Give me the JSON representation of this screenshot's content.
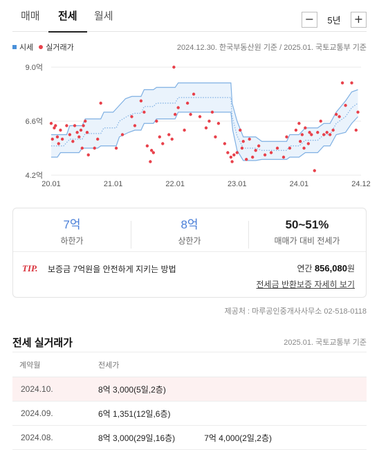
{
  "tabs": [
    {
      "label": "매매",
      "active": false
    },
    {
      "label": "전세",
      "active": true
    },
    {
      "label": "월세",
      "active": false
    }
  ],
  "period": {
    "minus": "−",
    "label": "5년",
    "plus": "+"
  },
  "legend": {
    "market": "시세",
    "actual": "실거래가"
  },
  "chart_source": "2024.12.30. 한국부동산원 기준 / 2025.01. 국토교통부 기준",
  "chart_data": {
    "type": "line",
    "xlabels": [
      "20.01",
      "21.01",
      "22.01",
      "23.01",
      "24.01",
      "24.12"
    ],
    "yticks": [
      "9.0억",
      "6.6억",
      "4.2억"
    ],
    "ylim": [
      4.2,
      9.0
    ],
    "xlim": [
      2020.0,
      2025.0
    ],
    "grid": true,
    "series": [
      {
        "name": "시세",
        "upper": [
          [
            2020.0,
            6.0
          ],
          [
            2020.25,
            6.0
          ],
          [
            2020.3,
            6.4
          ],
          [
            2020.5,
            6.4
          ],
          [
            2020.55,
            6.7
          ],
          [
            2020.8,
            6.7
          ],
          [
            2020.85,
            7.0
          ],
          [
            2021.0,
            7.0
          ],
          [
            2021.1,
            7.3
          ],
          [
            2021.2,
            7.6
          ],
          [
            2021.3,
            7.7
          ],
          [
            2021.45,
            7.7
          ],
          [
            2021.5,
            8.0
          ],
          [
            2021.65,
            8.0
          ],
          [
            2021.7,
            8.1
          ],
          [
            2022.0,
            8.1
          ],
          [
            2022.05,
            8.3
          ],
          [
            2022.9,
            8.3
          ],
          [
            2022.92,
            7.4
          ],
          [
            2023.0,
            6.6
          ],
          [
            2023.1,
            5.9
          ],
          [
            2023.3,
            5.9
          ],
          [
            2023.4,
            5.7
          ],
          [
            2023.8,
            5.7
          ],
          [
            2023.85,
            6.0
          ],
          [
            2024.0,
            6.0
          ],
          [
            2024.1,
            6.3
          ],
          [
            2024.3,
            6.3
          ],
          [
            2024.4,
            6.5
          ],
          [
            2024.5,
            6.5
          ],
          [
            2024.6,
            7.0
          ],
          [
            2024.75,
            7.5
          ],
          [
            2024.85,
            7.9
          ],
          [
            2024.95,
            8.0
          ]
        ],
        "lower": [
          [
            2020.0,
            5.0
          ],
          [
            2020.1,
            5.0
          ],
          [
            2020.15,
            5.2
          ],
          [
            2020.45,
            5.2
          ],
          [
            2020.5,
            5.4
          ],
          [
            2020.75,
            5.4
          ],
          [
            2020.8,
            5.5
          ],
          [
            2021.05,
            5.5
          ],
          [
            2021.1,
            5.9
          ],
          [
            2021.25,
            6.1
          ],
          [
            2021.35,
            6.2
          ],
          [
            2021.45,
            6.2
          ],
          [
            2021.5,
            6.5
          ],
          [
            2021.65,
            6.5
          ],
          [
            2021.7,
            6.7
          ],
          [
            2022.0,
            6.7
          ],
          [
            2022.05,
            7.0
          ],
          [
            2022.9,
            7.0
          ],
          [
            2022.93,
            6.2
          ],
          [
            2023.0,
            5.3
          ],
          [
            2023.1,
            4.85
          ],
          [
            2023.3,
            4.85
          ],
          [
            2023.4,
            4.9
          ],
          [
            2023.8,
            4.9
          ],
          [
            2023.85,
            5.0
          ],
          [
            2024.0,
            5.0
          ],
          [
            2024.1,
            5.2
          ],
          [
            2024.3,
            5.2
          ],
          [
            2024.4,
            5.5
          ],
          [
            2024.5,
            5.5
          ],
          [
            2024.6,
            6.0
          ],
          [
            2024.75,
            6.1
          ],
          [
            2024.85,
            6.5
          ],
          [
            2024.95,
            6.8
          ]
        ],
        "mid": [
          [
            2020.0,
            5.5
          ],
          [
            2020.2,
            5.5
          ],
          [
            2020.3,
            5.8
          ],
          [
            2020.5,
            5.8
          ],
          [
            2020.55,
            6.05
          ],
          [
            2020.8,
            6.05
          ],
          [
            2020.85,
            6.3
          ],
          [
            2021.05,
            6.3
          ],
          [
            2021.1,
            6.6
          ],
          [
            2021.25,
            6.85
          ],
          [
            2021.35,
            6.95
          ],
          [
            2021.45,
            6.95
          ],
          [
            2021.5,
            7.25
          ],
          [
            2021.65,
            7.25
          ],
          [
            2021.7,
            7.4
          ],
          [
            2022.0,
            7.4
          ],
          [
            2022.05,
            7.65
          ],
          [
            2022.9,
            7.65
          ],
          [
            2022.92,
            6.8
          ],
          [
            2023.0,
            5.95
          ],
          [
            2023.1,
            5.4
          ],
          [
            2023.3,
            5.4
          ],
          [
            2023.4,
            5.3
          ],
          [
            2023.8,
            5.3
          ],
          [
            2023.85,
            5.5
          ],
          [
            2024.0,
            5.5
          ],
          [
            2024.1,
            5.75
          ],
          [
            2024.3,
            5.75
          ],
          [
            2024.4,
            6.0
          ],
          [
            2024.5,
            6.0
          ],
          [
            2024.6,
            6.5
          ],
          [
            2024.75,
            6.8
          ],
          [
            2024.85,
            7.2
          ],
          [
            2024.95,
            7.4
          ]
        ]
      },
      {
        "name": "실거래가",
        "points": [
          [
            2020.0,
            6.5
          ],
          [
            2020.02,
            5.8
          ],
          [
            2020.05,
            6.3
          ],
          [
            2020.07,
            6.4
          ],
          [
            2020.1,
            5.9
          ],
          [
            2020.12,
            5.6
          ],
          [
            2020.15,
            6.2
          ],
          [
            2020.18,
            5.8
          ],
          [
            2020.25,
            6.4
          ],
          [
            2020.3,
            6.0
          ],
          [
            2020.35,
            5.7
          ],
          [
            2020.38,
            6.4
          ],
          [
            2020.42,
            6.1
          ],
          [
            2020.45,
            5.9
          ],
          [
            2020.48,
            6.2
          ],
          [
            2020.5,
            5.4
          ],
          [
            2020.52,
            6.4
          ],
          [
            2020.55,
            6.6
          ],
          [
            2020.58,
            6.1
          ],
          [
            2020.6,
            5.1
          ],
          [
            2020.7,
            5.4
          ],
          [
            2020.75,
            5.8
          ],
          [
            2020.8,
            7.4
          ],
          [
            2021.05,
            5.4
          ],
          [
            2021.15,
            6.0
          ],
          [
            2021.3,
            6.8
          ],
          [
            2021.35,
            6.4
          ],
          [
            2021.45,
            7.5
          ],
          [
            2021.5,
            7.0
          ],
          [
            2021.55,
            5.5
          ],
          [
            2021.6,
            4.8
          ],
          [
            2021.62,
            5.3
          ],
          [
            2021.65,
            5.2
          ],
          [
            2021.7,
            6.6
          ],
          [
            2021.75,
            5.9
          ],
          [
            2021.8,
            5.6
          ],
          [
            2021.9,
            6.0
          ],
          [
            2021.95,
            5.8
          ],
          [
            2022.0,
            6.9
          ],
          [
            2022.05,
            7.2
          ],
          [
            2022.15,
            6.2
          ],
          [
            2022.2,
            7.4
          ],
          [
            2022.25,
            6.9
          ],
          [
            2022.3,
            7.8
          ],
          [
            2022.4,
            6.8
          ],
          [
            2022.5,
            6.3
          ],
          [
            2022.55,
            6.6
          ],
          [
            2022.6,
            7.0
          ],
          [
            2022.65,
            5.9
          ],
          [
            2022.7,
            6.5
          ],
          [
            2022.8,
            5.6
          ],
          [
            2022.85,
            5.2
          ],
          [
            2022.9,
            5.0
          ],
          [
            2022.92,
            4.8
          ],
          [
            2022.95,
            5.1
          ],
          [
            2023.0,
            5.2
          ],
          [
            2023.05,
            6.2
          ],
          [
            2023.08,
            5.4
          ],
          [
            2023.1,
            5.7
          ],
          [
            2023.15,
            4.9
          ],
          [
            2023.2,
            5.8
          ],
          [
            2023.25,
            5.0
          ],
          [
            2023.3,
            5.3
          ],
          [
            2023.35,
            5.5
          ],
          [
            2023.45,
            5.1
          ],
          [
            2023.55,
            5.2
          ],
          [
            2023.65,
            5.4
          ],
          [
            2023.75,
            5.0
          ],
          [
            2023.8,
            5.9
          ],
          [
            2023.85,
            5.4
          ],
          [
            2023.95,
            6.2
          ],
          [
            2024.0,
            6.5
          ],
          [
            2024.02,
            5.7
          ],
          [
            2024.05,
            6.0
          ],
          [
            2024.08,
            5.4
          ],
          [
            2024.1,
            6.3
          ],
          [
            2024.15,
            5.6
          ],
          [
            2024.17,
            6.1
          ],
          [
            2024.2,
            6.0
          ],
          [
            2024.25,
            4.4
          ],
          [
            2024.3,
            6.1
          ],
          [
            2024.35,
            6.6
          ],
          [
            2024.4,
            6.0
          ],
          [
            2024.45,
            6.1
          ],
          [
            2024.5,
            6.0
          ],
          [
            2024.55,
            6.2
          ],
          [
            2024.6,
            6.9
          ],
          [
            2024.65,
            6.8
          ],
          [
            2024.7,
            8.3
          ],
          [
            2024.75,
            7.3
          ],
          [
            2024.85,
            8.3
          ],
          [
            2024.92,
            6.2
          ],
          [
            2024.95,
            7.0
          ],
          [
            2021.98,
            9.0
          ]
        ]
      }
    ]
  },
  "summary": {
    "min": {
      "value": "7억",
      "label": "하한가"
    },
    "max": {
      "value": "8억",
      "label": "상한가"
    },
    "ratio": {
      "value": "50~51%",
      "label": "매매가 대비 전세가"
    }
  },
  "tip": {
    "badge": "TIP.",
    "text": "보증금 7억원을 안전하게 지키는 방법",
    "yearly_label": "연간",
    "yearly_value": "856,080",
    "yearly_unit": "원",
    "link": "전세금 반환보증 자세히 보기"
  },
  "provider": "제공처 : 마루공인중개사사무소 02-518-0118",
  "deals": {
    "title": "전세 실거래가",
    "source": "2025.01. 국토교통부 기준",
    "col_month": "계약월",
    "col_price": "전세가",
    "rows": [
      {
        "month": "2024.10.",
        "deals": [
          "8억 3,000(5일,2층)"
        ],
        "highlight": true
      },
      {
        "month": "2024.09.",
        "deals": [
          "6억 1,351(12일,6층)"
        ],
        "highlight": false
      },
      {
        "month": "2024.08.",
        "deals": [
          "8억 3,000(29일,16층)",
          "7억 4,000(2일,2층)"
        ],
        "highlight": false
      }
    ]
  }
}
